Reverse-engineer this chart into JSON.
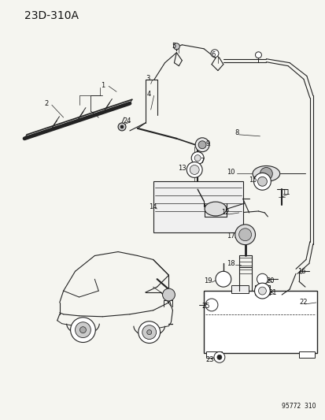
{
  "title": "23D-310A",
  "watermark": "95772 310",
  "bg_color": "#f5f5f0",
  "fig_width": 4.14,
  "fig_height": 5.33,
  "dpi": 100,
  "line_color": "#222222",
  "text_color": "#111111",
  "label_fs": 6.0
}
